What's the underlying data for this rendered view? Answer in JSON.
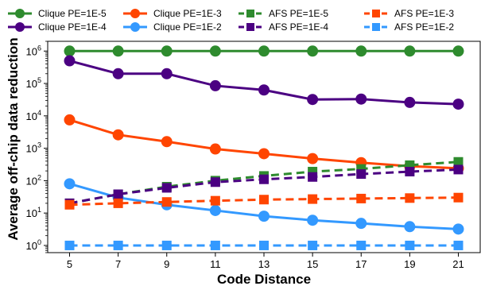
{
  "chart_data": {
    "type": "line",
    "xlabel": "Code Distance",
    "ylabel": "Average off-chip data reduction",
    "x": [
      5,
      7,
      9,
      11,
      13,
      15,
      17,
      19,
      21
    ],
    "y_scale": "log",
    "ylim": [
      0.6,
      2000000
    ],
    "xlim": [
      4.1,
      21.9
    ],
    "x_ticks": [
      5,
      7,
      9,
      11,
      13,
      15,
      17,
      19,
      21
    ],
    "y_ticks": [
      {
        "value": 1,
        "base": "10",
        "exp": "0"
      },
      {
        "value": 10,
        "base": "10",
        "exp": "1"
      },
      {
        "value": 100,
        "base": "10",
        "exp": "2"
      },
      {
        "value": 1000,
        "base": "10",
        "exp": "3"
      },
      {
        "value": 10000,
        "base": "10",
        "exp": "4"
      },
      {
        "value": 100000,
        "base": "10",
        "exp": "5"
      },
      {
        "value": 1000000,
        "base": "10",
        "exp": "6"
      }
    ],
    "grid": false,
    "legend_position": "top",
    "series": [
      {
        "name": "Clique PE=1E-5",
        "color": "#2e8b2e",
        "dash": "solid",
        "marker": "circle",
        "values": [
          1000000,
          1000000,
          1000000,
          1000000,
          1000000,
          1000000,
          1000000,
          1000000,
          1000000
        ]
      },
      {
        "name": "Clique PE=1E-4",
        "color": "#4b0082",
        "dash": "solid",
        "marker": "circle",
        "values": [
          500000,
          200000,
          200000,
          85000,
          63000,
          32000,
          33000,
          26000,
          23000
        ]
      },
      {
        "name": "Clique PE=1E-3",
        "color": "#ff4500",
        "dash": "solid",
        "marker": "circle",
        "values": [
          7500,
          2600,
          1600,
          950,
          680,
          480,
          360,
          280,
          240
        ]
      },
      {
        "name": "Clique PE=1E-2",
        "color": "#3399ff",
        "dash": "solid",
        "marker": "circle",
        "values": [
          80,
          30,
          18,
          12,
          8,
          6,
          4.8,
          3.8,
          3.2
        ]
      },
      {
        "name": "AFS PE=1E-5",
        "color": "#2e8b2e",
        "dash": "dashed",
        "marker": "square",
        "values": [
          20,
          38,
          65,
          100,
          140,
          190,
          230,
          300,
          380
        ]
      },
      {
        "name": "AFS PE=1E-4",
        "color": "#4b0082",
        "dash": "dashed",
        "marker": "square",
        "values": [
          20,
          38,
          60,
          90,
          110,
          130,
          160,
          190,
          220
        ]
      },
      {
        "name": "AFS PE=1E-3",
        "color": "#ff4500",
        "dash": "dashed",
        "marker": "square",
        "values": [
          18,
          20,
          22,
          24,
          26,
          27,
          28,
          29,
          30
        ]
      },
      {
        "name": "AFS PE=1E-2",
        "color": "#3399ff",
        "dash": "dashed",
        "marker": "square",
        "values": [
          1,
          1,
          1,
          1,
          1,
          1,
          1,
          1,
          1
        ]
      }
    ]
  }
}
